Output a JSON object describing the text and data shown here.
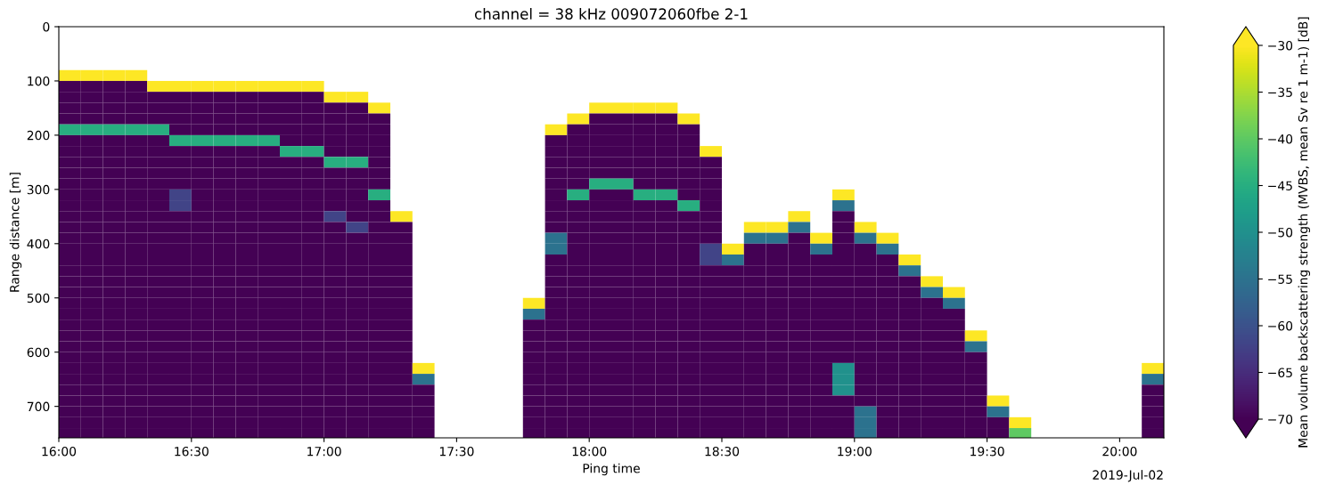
{
  "chart_data": {
    "type": "heatmap",
    "title": "channel = 38 kHz 009072060fbe 2-1",
    "xlabel": "Ping time",
    "ylabel": "Range distance [m]",
    "clabel": "Mean volume backscattering strength (MVBS, mean Sv re 1 m-1) [dB]",
    "annotations": [
      "2019-Jul-02"
    ],
    "xlim": [
      16,
      20.1667
    ],
    "xticks": [
      {
        "value": 16,
        "label": "16:00"
      },
      {
        "value": 16.5,
        "label": "16:30"
      },
      {
        "value": 17,
        "label": "17:00"
      },
      {
        "value": 17.5,
        "label": "17:30"
      },
      {
        "value": 18,
        "label": "18:00"
      },
      {
        "value": 18.5,
        "label": "18:30"
      },
      {
        "value": 19,
        "label": "19:00"
      },
      {
        "value": 19.5,
        "label": "19:30"
      },
      {
        "value": 20,
        "label": "20:00"
      }
    ],
    "ylim": [
      758,
      0
    ],
    "yticks": [
      0,
      100,
      200,
      300,
      400,
      500,
      600,
      700
    ],
    "clim": [
      -70,
      -30
    ],
    "cticks": [
      -70,
      -65,
      -60,
      -55,
      -50,
      -45,
      -40,
      -35,
      -30
    ],
    "x": [
      16.0417,
      16.125,
      16.2083,
      16.2917,
      16.375,
      16.4583,
      16.5417,
      16.625,
      16.7083,
      16.7917,
      16.875,
      16.9583,
      17.0417,
      17.125,
      17.2083,
      17.2917,
      17.375,
      17.4583,
      17.5417,
      17.625,
      17.7083,
      17.7917,
      17.875,
      17.9583,
      18.0417,
      18.125,
      18.2083,
      18.2917,
      18.375,
      18.4583,
      18.5417,
      18.625,
      18.7083,
      18.7917,
      18.875,
      18.9583,
      19.0417,
      19.125,
      19.2083,
      19.2917,
      19.375,
      19.4583,
      19.5417,
      19.625,
      19.7083,
      19.7917,
      19.875,
      19.9583,
      20.0417,
      20.125
    ],
    "y": [
      90,
      110,
      130,
      150,
      170,
      190,
      210,
      230,
      250,
      270,
      290,
      310,
      330,
      350,
      370,
      390,
      410,
      430,
      450,
      470,
      490,
      510,
      530,
      550,
      570,
      590,
      610,
      630,
      650,
      670,
      690,
      710,
      730,
      750
    ],
    "cells": [
      [
        -30,
        -30,
        -30,
        -30,
        null,
        null,
        null,
        null,
        null,
        null,
        null,
        null,
        null,
        null,
        null,
        null,
        null,
        null,
        null,
        null,
        null,
        null,
        null,
        null,
        null,
        null,
        null,
        null,
        null,
        null,
        null,
        null,
        null,
        null,
        null,
        null,
        null,
        null,
        null,
        null,
        null,
        null,
        null,
        null,
        null,
        null,
        null,
        null,
        null,
        null
      ],
      [
        -70,
        -70,
        -70,
        -70,
        -30,
        -30,
        -30,
        -30,
        -30,
        -30,
        -30,
        -30,
        null,
        null,
        null,
        null,
        null,
        null,
        null,
        null,
        null,
        null,
        null,
        null,
        null,
        null,
        null,
        null,
        null,
        null,
        null,
        null,
        null,
        null,
        null,
        null,
        null,
        null,
        null,
        null,
        null,
        null,
        null,
        null,
        null,
        null,
        null,
        null,
        null,
        null
      ],
      [
        -70,
        -70,
        -70,
        -70,
        -70,
        -70,
        -70,
        -70,
        -70,
        -70,
        -70,
        -70,
        -30,
        -30,
        null,
        null,
        null,
        null,
        null,
        null,
        null,
        null,
        null,
        null,
        null,
        null,
        null,
        null,
        null,
        null,
        null,
        null,
        null,
        null,
        null,
        null,
        null,
        null,
        null,
        null,
        null,
        null,
        null,
        null,
        null,
        null,
        null,
        null,
        null,
        null
      ],
      [
        -70,
        -70,
        -70,
        -70,
        -70,
        -70,
        -70,
        -70,
        -70,
        -70,
        -70,
        -70,
        -70,
        -70,
        -30,
        null,
        null,
        null,
        null,
        null,
        null,
        null,
        null,
        null,
        -30,
        -30,
        -30,
        -30,
        null,
        null,
        null,
        null,
        null,
        null,
        null,
        null,
        null,
        null,
        null,
        null,
        null,
        null,
        null,
        null,
        null,
        null,
        null,
        null,
        null,
        null
      ],
      [
        -70,
        -70,
        -70,
        -70,
        -70,
        -70,
        -70,
        -70,
        -70,
        -70,
        -70,
        -70,
        -70,
        -70,
        -70,
        null,
        null,
        null,
        null,
        null,
        null,
        null,
        null,
        -30,
        -70,
        -70,
        -70,
        -70,
        -30,
        null,
        null,
        null,
        null,
        null,
        null,
        null,
        null,
        null,
        null,
        null,
        null,
        null,
        null,
        null,
        null,
        null,
        null,
        null,
        null,
        null
      ],
      [
        -45,
        -45,
        -45,
        -45,
        -45,
        -70,
        -70,
        -70,
        -70,
        -70,
        -70,
        -70,
        -70,
        -70,
        -70,
        null,
        null,
        null,
        null,
        null,
        null,
        null,
        -30,
        -70,
        -70,
        -70,
        -70,
        -70,
        -70,
        null,
        null,
        null,
        null,
        null,
        null,
        null,
        null,
        null,
        null,
        null,
        null,
        null,
        null,
        null,
        null,
        null,
        null,
        null,
        null,
        null
      ],
      [
        -70,
        -70,
        -70,
        -70,
        -70,
        -45,
        -45,
        -45,
        -45,
        -45,
        -70,
        -70,
        -70,
        -70,
        -70,
        null,
        null,
        null,
        null,
        null,
        null,
        null,
        -70,
        -70,
        -70,
        -70,
        -70,
        -70,
        -70,
        null,
        null,
        null,
        null,
        null,
        null,
        null,
        null,
        null,
        null,
        null,
        null,
        null,
        null,
        null,
        null,
        null,
        null,
        null,
        null,
        null
      ],
      [
        -70,
        -70,
        -70,
        -70,
        -70,
        -70,
        -70,
        -70,
        -70,
        -70,
        -45,
        -45,
        -70,
        -70,
        -70,
        null,
        null,
        null,
        null,
        null,
        null,
        null,
        -70,
        -70,
        -70,
        -70,
        -70,
        -70,
        -70,
        -30,
        null,
        null,
        null,
        null,
        null,
        null,
        null,
        null,
        null,
        null,
        null,
        null,
        null,
        null,
        null,
        null,
        null,
        null,
        null,
        null
      ],
      [
        -70,
        -70,
        -70,
        -70,
        -70,
        -70,
        -70,
        -70,
        -70,
        -70,
        -70,
        -70,
        -45,
        -45,
        -70,
        null,
        null,
        null,
        null,
        null,
        null,
        null,
        -70,
        -70,
        -70,
        -70,
        -70,
        -70,
        -70,
        -70,
        null,
        null,
        null,
        null,
        null,
        null,
        null,
        null,
        null,
        null,
        null,
        null,
        null,
        null,
        null,
        null,
        null,
        null,
        null,
        null
      ],
      [
        -70,
        -70,
        -70,
        -70,
        -70,
        -70,
        -70,
        -70,
        -70,
        -70,
        -70,
        -70,
        -70,
        -70,
        -70,
        null,
        null,
        null,
        null,
        null,
        null,
        null,
        -70,
        -70,
        -70,
        -70,
        -70,
        -70,
        -70,
        -70,
        null,
        null,
        null,
        null,
        null,
        null,
        null,
        null,
        null,
        null,
        null,
        null,
        null,
        null,
        null,
        null,
        null,
        null,
        null,
        null
      ],
      [
        -70,
        -70,
        -70,
        -70,
        -70,
        -70,
        -70,
        -70,
        -70,
        -70,
        -70,
        -70,
        -70,
        -70,
        -70,
        null,
        null,
        null,
        null,
        null,
        null,
        null,
        -70,
        -70,
        -45,
        -45,
        -70,
        -70,
        -70,
        -70,
        null,
        null,
        null,
        null,
        null,
        null,
        null,
        null,
        null,
        null,
        null,
        null,
        null,
        null,
        null,
        null,
        null,
        null,
        null,
        null
      ],
      [
        -70,
        -70,
        -70,
        -70,
        -70,
        -62,
        -70,
        -70,
        -70,
        -70,
        -70,
        -70,
        -70,
        -70,
        -45,
        null,
        null,
        null,
        null,
        null,
        null,
        null,
        -70,
        -45,
        -70,
        -70,
        -45,
        -45,
        -70,
        -70,
        null,
        null,
        null,
        null,
        null,
        -30,
        null,
        null,
        null,
        null,
        null,
        null,
        null,
        null,
        null,
        null,
        null,
        null,
        null,
        null
      ],
      [
        -70,
        -70,
        -70,
        -70,
        -70,
        -62,
        -70,
        -70,
        -70,
        -70,
        -70,
        -70,
        -70,
        -70,
        -70,
        null,
        null,
        null,
        null,
        null,
        null,
        null,
        -70,
        -70,
        -70,
        -70,
        -70,
        -70,
        -45,
        -70,
        null,
        null,
        null,
        null,
        null,
        -55,
        null,
        null,
        null,
        null,
        null,
        null,
        null,
        null,
        null,
        null,
        null,
        null,
        null,
        null
      ],
      [
        -70,
        -70,
        -70,
        -70,
        -70,
        -70,
        -70,
        -70,
        -70,
        -70,
        -70,
        -70,
        -62,
        -70,
        -70,
        -30,
        null,
        null,
        null,
        null,
        null,
        null,
        -70,
        -70,
        -70,
        -70,
        -70,
        -70,
        -70,
        -70,
        null,
        null,
        null,
        -30,
        null,
        -70,
        null,
        null,
        null,
        null,
        null,
        null,
        null,
        null,
        null,
        null,
        null,
        null,
        null,
        null
      ],
      [
        -70,
        -70,
        -70,
        -70,
        -70,
        -70,
        -70,
        -70,
        -70,
        -70,
        -70,
        -70,
        -70,
        -62,
        -70,
        -70,
        null,
        null,
        null,
        null,
        null,
        null,
        -70,
        -70,
        -70,
        -70,
        -70,
        -70,
        -70,
        -70,
        null,
        -30,
        -30,
        -55,
        null,
        -70,
        -30,
        null,
        null,
        null,
        null,
        null,
        null,
        null,
        null,
        null,
        null,
        null,
        null,
        null
      ],
      [
        -70,
        -70,
        -70,
        -70,
        -70,
        -70,
        -70,
        -70,
        -70,
        -70,
        -70,
        -70,
        -70,
        -70,
        -70,
        -70,
        null,
        null,
        null,
        null,
        null,
        null,
        -55,
        -70,
        -70,
        -70,
        -70,
        -70,
        -70,
        -70,
        null,
        -55,
        -55,
        -70,
        -30,
        -70,
        -55,
        -30,
        null,
        null,
        null,
        null,
        null,
        null,
        null,
        null,
        null,
        null,
        null,
        null
      ],
      [
        -70,
        -70,
        -70,
        -70,
        -70,
        -70,
        -70,
        -70,
        -70,
        -70,
        -70,
        -70,
        -70,
        -70,
        -70,
        -70,
        null,
        null,
        null,
        null,
        null,
        null,
        -55,
        -70,
        -70,
        -70,
        -70,
        -70,
        -70,
        -62,
        -30,
        -70,
        -70,
        -70,
        -55,
        -70,
        -70,
        -55,
        null,
        null,
        null,
        null,
        null,
        null,
        null,
        null,
        null,
        null,
        null,
        null
      ],
      [
        -70,
        -70,
        -70,
        -70,
        -70,
        -70,
        -70,
        -70,
        -70,
        -70,
        -70,
        -70,
        -70,
        -70,
        -70,
        -70,
        null,
        null,
        null,
        null,
        null,
        null,
        -70,
        -70,
        -70,
        -70,
        -70,
        -70,
        -70,
        -62,
        -55,
        -70,
        -70,
        -70,
        -70,
        -70,
        -70,
        -70,
        -30,
        null,
        null,
        null,
        null,
        null,
        null,
        null,
        null,
        null,
        null,
        null
      ],
      [
        -70,
        -70,
        -70,
        -70,
        -70,
        -70,
        -70,
        -70,
        -70,
        -70,
        -70,
        -70,
        -70,
        -70,
        -70,
        -70,
        null,
        null,
        null,
        null,
        null,
        null,
        -70,
        -70,
        -70,
        -70,
        -70,
        -70,
        -70,
        -70,
        -70,
        -70,
        -70,
        -70,
        -70,
        -70,
        -70,
        -70,
        -55,
        null,
        null,
        null,
        null,
        null,
        null,
        null,
        null,
        null,
        null,
        null
      ],
      [
        -70,
        -70,
        -70,
        -70,
        -70,
        -70,
        -70,
        -70,
        -70,
        -70,
        -70,
        -70,
        -70,
        -70,
        -70,
        -70,
        null,
        null,
        null,
        null,
        null,
        null,
        -70,
        -70,
        -70,
        -70,
        -70,
        -70,
        -70,
        -70,
        -70,
        -70,
        -70,
        -70,
        -70,
        -70,
        -70,
        -70,
        -70,
        -30,
        null,
        null,
        null,
        null,
        null,
        null,
        null,
        null,
        null,
        null
      ],
      [
        -70,
        -70,
        -70,
        -70,
        -70,
        -70,
        -70,
        -70,
        -70,
        -70,
        -70,
        -70,
        -70,
        -70,
        -70,
        -70,
        null,
        null,
        null,
        null,
        null,
        null,
        -70,
        -70,
        -70,
        -70,
        -70,
        -70,
        -70,
        -70,
        -70,
        -70,
        -70,
        -70,
        -70,
        -70,
        -70,
        -70,
        -70,
        -55,
        -30,
        null,
        null,
        null,
        null,
        null,
        null,
        null,
        null,
        null
      ],
      [
        -70,
        -70,
        -70,
        -70,
        -70,
        -70,
        -70,
        -70,
        -70,
        -70,
        -70,
        -70,
        -70,
        -70,
        -70,
        -70,
        null,
        null,
        null,
        null,
        null,
        -30,
        -70,
        -70,
        -70,
        -70,
        -70,
        -70,
        -70,
        -70,
        -70,
        -70,
        -70,
        -70,
        -70,
        -70,
        -70,
        -70,
        -70,
        -70,
        -55,
        null,
        null,
        null,
        null,
        null,
        null,
        null,
        null,
        null
      ],
      [
        -70,
        -70,
        -70,
        -70,
        -70,
        -70,
        -70,
        -70,
        -70,
        -70,
        -70,
        -70,
        -70,
        -70,
        -70,
        -70,
        null,
        null,
        null,
        null,
        null,
        -55,
        -70,
        -70,
        -70,
        -70,
        -70,
        -70,
        -70,
        -70,
        -70,
        -70,
        -70,
        -70,
        -70,
        -70,
        -70,
        -70,
        -70,
        -70,
        -70,
        null,
        null,
        null,
        null,
        null,
        null,
        null,
        null,
        null
      ],
      [
        -70,
        -70,
        -70,
        -70,
        -70,
        -70,
        -70,
        -70,
        -70,
        -70,
        -70,
        -70,
        -70,
        -70,
        -70,
        -70,
        null,
        null,
        null,
        null,
        null,
        -70,
        -70,
        -70,
        -70,
        -70,
        -70,
        -70,
        -70,
        -70,
        -70,
        -70,
        -70,
        -70,
        -70,
        -70,
        -70,
        -70,
        -70,
        -70,
        -70,
        null,
        null,
        null,
        null,
        null,
        null,
        null,
        null,
        null
      ],
      [
        -70,
        -70,
        -70,
        -70,
        -70,
        -70,
        -70,
        -70,
        -70,
        -70,
        -70,
        -70,
        -70,
        -70,
        -70,
        -70,
        null,
        null,
        null,
        null,
        null,
        -70,
        -70,
        -70,
        -70,
        -70,
        -70,
        -70,
        -70,
        -70,
        -70,
        -70,
        -70,
        -70,
        -70,
        -70,
        -70,
        -70,
        -70,
        -70,
        -70,
        -30,
        null,
        null,
        null,
        null,
        null,
        null,
        null,
        null
      ],
      [
        -70,
        -70,
        -70,
        -70,
        -70,
        -70,
        -70,
        -70,
        -70,
        -70,
        -70,
        -70,
        -70,
        -70,
        -70,
        -70,
        null,
        null,
        null,
        null,
        null,
        -70,
        -70,
        -70,
        -70,
        -70,
        -70,
        -70,
        -70,
        -70,
        -70,
        -70,
        -70,
        -70,
        -70,
        -70,
        -70,
        -70,
        -70,
        -70,
        -70,
        -55,
        null,
        null,
        null,
        null,
        null,
        null,
        null,
        null
      ],
      [
        -70,
        -70,
        -70,
        -70,
        -70,
        -70,
        -70,
        -70,
        -70,
        -70,
        -70,
        -70,
        -70,
        -70,
        -70,
        -70,
        null,
        null,
        null,
        null,
        null,
        -70,
        -70,
        -70,
        -70,
        -70,
        -70,
        -70,
        -70,
        -70,
        -70,
        -70,
        -70,
        -70,
        -70,
        -70,
        -70,
        -70,
        -70,
        -70,
        -70,
        -70,
        null,
        null,
        null,
        null,
        null,
        null,
        null,
        null
      ],
      [
        -70,
        -70,
        -70,
        -70,
        -70,
        -70,
        -70,
        -70,
        -70,
        -70,
        -70,
        -70,
        -70,
        -70,
        -70,
        -70,
        -30,
        null,
        null,
        null,
        null,
        -70,
        -70,
        -70,
        -70,
        -70,
        -70,
        -70,
        -70,
        -70,
        -70,
        -70,
        -70,
        -70,
        -70,
        -50,
        -70,
        -70,
        -70,
        -70,
        -70,
        -70,
        null,
        null,
        null,
        null,
        null,
        null,
        null,
        -30
      ],
      [
        -70,
        -70,
        -70,
        -70,
        -70,
        -70,
        -70,
        -70,
        -70,
        -70,
        -70,
        -70,
        -70,
        -70,
        -70,
        -70,
        -55,
        null,
        null,
        null,
        null,
        -70,
        -70,
        -70,
        -70,
        -70,
        -70,
        -70,
        -70,
        -70,
        -70,
        -70,
        -70,
        -70,
        -70,
        -50,
        -70,
        -70,
        -70,
        -70,
        -70,
        -70,
        null,
        null,
        null,
        null,
        null,
        null,
        null,
        -55
      ],
      [
        -70,
        -70,
        -70,
        -70,
        -70,
        -70,
        -70,
        -70,
        -70,
        -70,
        -70,
        -70,
        -70,
        -70,
        -70,
        -70,
        -70,
        null,
        null,
        null,
        null,
        -70,
        -70,
        -70,
        -70,
        -70,
        -70,
        -70,
        -70,
        -70,
        -70,
        -70,
        -70,
        -70,
        -70,
        -50,
        -70,
        -70,
        -70,
        -70,
        -70,
        -70,
        null,
        null,
        null,
        null,
        null,
        null,
        null,
        -70
      ],
      [
        -70,
        -70,
        -70,
        -70,
        -70,
        -70,
        -70,
        -70,
        -70,
        -70,
        -70,
        -70,
        -70,
        -70,
        -70,
        -70,
        -70,
        null,
        null,
        null,
        null,
        -70,
        -70,
        -70,
        -70,
        -70,
        -70,
        -70,
        -70,
        -70,
        -70,
        -70,
        -70,
        -70,
        -70,
        -70,
        -70,
        -70,
        -70,
        -70,
        -70,
        -70,
        -30,
        null,
        null,
        null,
        null,
        null,
        null,
        -70
      ],
      [
        -70,
        -70,
        -70,
        -70,
        -70,
        -70,
        -70,
        -70,
        -70,
        -70,
        -70,
        -70,
        -70,
        -70,
        -70,
        -70,
        -70,
        null,
        null,
        null,
        null,
        -70,
        -70,
        -70,
        -70,
        -70,
        -70,
        -70,
        -70,
        -70,
        -70,
        -70,
        -70,
        -70,
        -70,
        -70,
        -55,
        -70,
        -70,
        -70,
        -70,
        -70,
        -55,
        null,
        null,
        null,
        null,
        null,
        null,
        -70
      ],
      [
        -70,
        -70,
        -70,
        -70,
        -70,
        -70,
        -70,
        -70,
        -70,
        -70,
        -70,
        -70,
        -70,
        -70,
        -70,
        -70,
        -70,
        null,
        null,
        null,
        null,
        -70,
        -70,
        -70,
        -70,
        -70,
        -70,
        -70,
        -70,
        -70,
        -70,
        -70,
        -70,
        -70,
        -70,
        -70,
        -55,
        -70,
        -70,
        -70,
        -70,
        -70,
        -70,
        -30,
        null,
        null,
        null,
        null,
        null,
        -70
      ],
      [
        -70,
        -70,
        -70,
        -70,
        -70,
        -70,
        -70,
        -70,
        -70,
        -70,
        -70,
        -70,
        -70,
        -70,
        -70,
        -70,
        -70,
        null,
        null,
        null,
        null,
        -70,
        -70,
        -70,
        -70,
        -70,
        -70,
        -70,
        -70,
        -70,
        -70,
        -70,
        -70,
        -70,
        -70,
        -70,
        -55,
        -70,
        -70,
        -70,
        -70,
        -70,
        -70,
        -40,
        null,
        null,
        null,
        null,
        null,
        -70
      ]
    ]
  }
}
